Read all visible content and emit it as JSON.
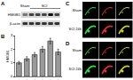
{
  "panel_labels": [
    "A",
    "B",
    "C",
    "D"
  ],
  "blot": {
    "groups": [
      "Sham",
      "SCI"
    ],
    "rows": [
      "HMGB1",
      "β-actin"
    ]
  },
  "chart_data": {
    "type": "bar",
    "y_label": "HMGB1",
    "categories": [
      "Sham",
      "3h",
      "6h",
      "12h",
      "24h",
      "48h"
    ],
    "values": [
      1.0,
      1.3,
      1.6,
      2.0,
      2.6,
      1.8
    ],
    "errors": [
      0.1,
      0.15,
      0.15,
      0.2,
      0.2,
      0.2
    ],
    "color": "#9a9a9a",
    "ylim": [
      0,
      3
    ],
    "yticks": [
      0,
      1,
      2,
      3
    ],
    "grid": false
  },
  "images": {
    "C": {
      "rows": [
        "Sham",
        "SCI 24h"
      ]
    },
    "D": {
      "rows": [
        "Sham",
        "SCI 24h"
      ]
    }
  }
}
